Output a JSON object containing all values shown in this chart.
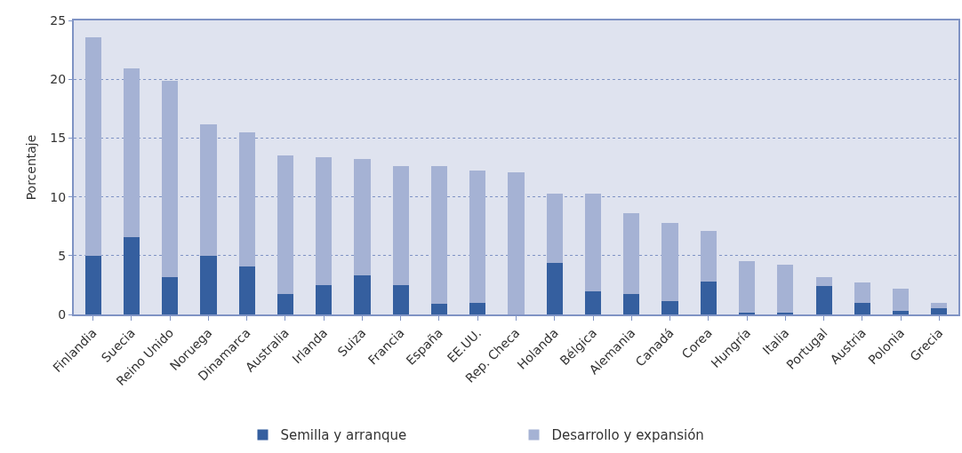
{
  "chart_data": {
    "type": "bar",
    "stacked": true,
    "ylabel": "Porcentaje",
    "categories": [
      "Finlandia",
      "Suecia",
      "Reino Unido",
      "Noruega",
      "Dinamarca",
      "Australia",
      "Irlanda",
      "Suiza",
      "Francia",
      "España",
      "EE.UU.",
      "Rep. Checa",
      "Holanda",
      "Bélgica",
      "Alemania",
      "Canadá",
      "Corea",
      "Hungría",
      "Italia",
      "Portugal",
      "Austria",
      "Polonia",
      "Grecia"
    ],
    "series": [
      {
        "name": "Semilla y arranque",
        "color": "#355f9f",
        "values": [
          5.0,
          6.6,
          3.2,
          5.0,
          4.1,
          1.7,
          2.5,
          3.3,
          2.5,
          0.9,
          1.0,
          0,
          4.4,
          2.0,
          1.7,
          1.1,
          2.8,
          0.15,
          0.15,
          2.4,
          1.0,
          0.3,
          0.5
        ]
      },
      {
        "name": "Desarrollo y expansión",
        "color": "#a5b2d4",
        "values": [
          18.6,
          14.3,
          16.7,
          11.2,
          11.4,
          11.8,
          10.9,
          9.9,
          10.1,
          11.7,
          11.2,
          12.1,
          5.9,
          8.3,
          6.9,
          6.7,
          4.3,
          4.35,
          4.05,
          0.8,
          1.7,
          1.9,
          0.5
        ]
      }
    ],
    "ylim": [
      0,
      25
    ],
    "yticks": [
      0,
      5,
      10,
      15,
      20,
      25
    ],
    "grid": "y",
    "legend": "bottom"
  }
}
